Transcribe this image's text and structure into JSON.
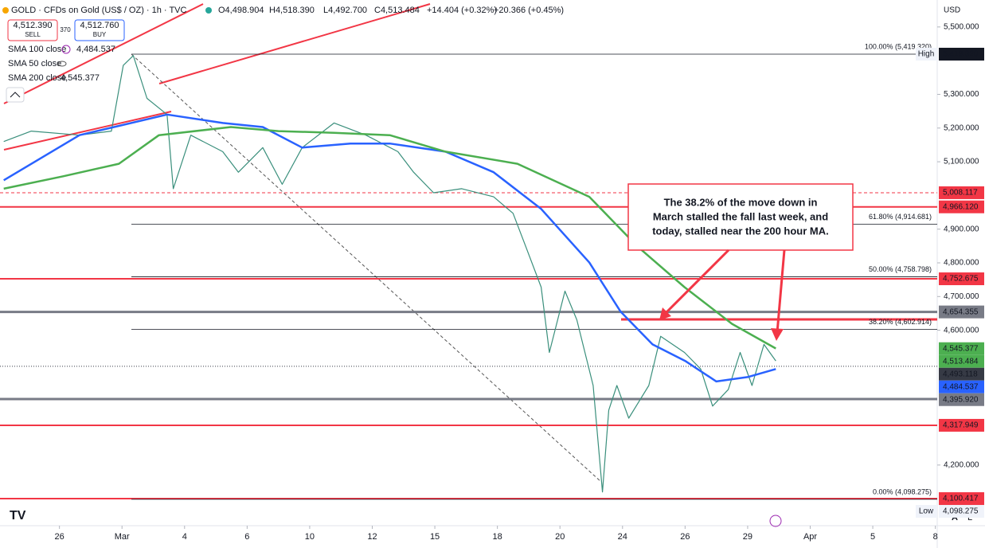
{
  "header": {
    "symbol": "GOLD · CFDs on Gold (US$ / OZ) · 1h · TVC",
    "open": "O4,498.904",
    "high": "H4,518.390",
    "low": "L4,492.700",
    "close": "C4,513.484",
    "change": "+14.404 (+0.32%)",
    "change2": "+20.366 (+0.45%)",
    "sell_price": "4,512.390",
    "sell": "SELL",
    "spread": "370",
    "buy_price": "4,512.760",
    "buy": "BUY",
    "currency": "USD"
  },
  "legend": [
    {
      "name": "SMA 100 close",
      "value": "4,484.537",
      "color": "#2962ff"
    },
    {
      "name": "SMA 50 close",
      "value": "",
      "color": "#9598a1"
    },
    {
      "name": "SMA 200 close",
      "value": "4,545.377",
      "color": "#4caf50"
    }
  ],
  "chart_data": {
    "type": "line",
    "xlim": [
      -0.95,
      14.03
    ],
    "xticks": [
      {
        "value": 0,
        "label": "26"
      },
      {
        "value": 1,
        "label": "Mar"
      },
      {
        "value": 2,
        "label": "4"
      },
      {
        "value": 3,
        "label": "6"
      },
      {
        "value": 4,
        "label": "10"
      },
      {
        "value": 5,
        "label": "12"
      },
      {
        "value": 6,
        "label": "15"
      },
      {
        "value": 7,
        "label": "18"
      },
      {
        "value": 8,
        "label": "20"
      },
      {
        "value": 9,
        "label": "24"
      },
      {
        "value": 10,
        "label": "26"
      },
      {
        "value": 11,
        "label": "29"
      },
      {
        "value": 12,
        "label": "Apr"
      },
      {
        "value": 13,
        "label": "5"
      },
      {
        "value": 14,
        "label": "8"
      }
    ],
    "ylim": [
      4020,
      5580
    ],
    "yticks": [
      {
        "value": 5500,
        "label": "5,500.000"
      },
      {
        "value": 5300,
        "label": "5,300.000"
      },
      {
        "value": 5200,
        "label": "5,200.000"
      },
      {
        "value": 5100,
        "label": "5,100.000"
      },
      {
        "value": 4900,
        "label": "4,900.000"
      },
      {
        "value": 4800,
        "label": "4,800.000"
      },
      {
        "value": 4700,
        "label": "4,700.000"
      },
      {
        "value": 4600,
        "label": "4,600.000"
      },
      {
        "value": 4200,
        "label": "4,200.000"
      }
    ],
    "series": [
      {
        "name": "GOLD",
        "color": "#3a8f7c",
        "x": [
          -0.89,
          -0.45,
          0.32,
          0.83,
          1.02,
          1.18,
          1.4,
          1.72,
          1.82,
          2.1,
          2.61,
          2.86,
          3.25,
          3.56,
          3.88,
          4.39,
          4.9,
          5.41,
          5.66,
          5.98,
          6.43,
          6.94,
          7.25,
          7.45,
          7.7,
          7.83,
          8.08,
          8.27,
          8.53,
          8.68,
          8.78,
          8.91,
          9.1,
          9.42,
          9.61,
          9.99,
          10.25,
          10.44,
          10.69,
          10.88,
          11.07,
          11.26,
          11.45
        ],
        "values": [
          5160,
          5191,
          5179,
          5191,
          5386,
          5415,
          5288,
          5240,
          5020,
          5179,
          5130,
          5069,
          5142,
          5033,
          5142,
          5215,
          5179,
          5130,
          5069,
          5008,
          5020,
          4996,
          4947,
          4850,
          4728,
          4534,
          4716,
          4631,
          4436,
          4120,
          4363,
          4436,
          4339,
          4436,
          4582,
          4534,
          4485,
          4375,
          4424,
          4534,
          4436,
          4558,
          4509
        ]
      },
      {
        "name": "SMA 100 close",
        "color": "#2962ff",
        "x": [
          -0.89,
          0.32,
          1.72,
          2.61,
          3.25,
          3.88,
          4.65,
          5.28,
          6.17,
          6.94,
          7.7,
          8.47,
          8.97,
          9.48,
          10.0,
          10.5,
          11.0,
          11.45
        ],
        "values": [
          5045,
          5179,
          5240,
          5215,
          5203,
          5142,
          5154,
          5154,
          5130,
          5069,
          4960,
          4801,
          4655,
          4558,
          4509,
          4448,
          4461,
          4485
        ]
      },
      {
        "name": "SMA 200 close",
        "color": "#4caf50",
        "x": [
          -0.89,
          0.06,
          0.95,
          1.59,
          2.74,
          3.5,
          4.39,
          5.28,
          6.17,
          7.32,
          8.47,
          9.23,
          9.99,
          10.75,
          11.45
        ],
        "values": [
          5020,
          5057,
          5094,
          5179,
          5203,
          5191,
          5186,
          5179,
          5130,
          5094,
          4996,
          4850,
          4728,
          4619,
          4546
        ]
      }
    ],
    "levels": [
      {
        "value": 5419.32,
        "label": "5,419.320",
        "color": "#131722",
        "line": "none"
      },
      {
        "value": 5008.117,
        "label": "5,008.117",
        "color": "#f23645",
        "line": "dashed"
      },
      {
        "value": 4966.12,
        "label": "4,966.120",
        "color": "#f23645",
        "line": "solid"
      },
      {
        "value": 4752.675,
        "label": "4,752.675",
        "color": "#f23645",
        "line": "solid"
      },
      {
        "value": 4654.355,
        "label": "4,654.355",
        "color": "#787b86",
        "line": "thick"
      },
      {
        "value": 4545.377,
        "label": "4,545.377",
        "color": "#4caf50",
        "line": "none"
      },
      {
        "value": 4513.484,
        "label": "4,513.484",
        "color": "#4caf50",
        "line": "none"
      },
      {
        "value": 4493.118,
        "label": "4,493.118",
        "color": "#363a45",
        "line": "dotted"
      },
      {
        "value": 4484.537,
        "label": "4,484.537",
        "color": "#2962ff",
        "line": "none"
      },
      {
        "value": 4395.92,
        "label": "4,395.920",
        "color": "#787b86",
        "line": "thick"
      },
      {
        "value": 4317.949,
        "label": "4,317.949",
        "color": "#f23645",
        "line": "solid"
      },
      {
        "value": 4100.417,
        "label": "4,100.417",
        "color": "#f23645",
        "line": "solid"
      },
      {
        "value": 4098.275,
        "label": "4,098.275",
        "color": "#f0f3fa",
        "line": "none"
      }
    ],
    "high_label": "High",
    "low_label": "Low",
    "fib": [
      {
        "value": 5419.32,
        "label": "100.00% (5,419.320)"
      },
      {
        "value": 4914.681,
        "label": "61.80% (4,914.681)"
      },
      {
        "value": 4758.798,
        "label": "50.00% (4,758.798)"
      },
      {
        "value": 4602.914,
        "label": "38.20% (4,602.914)"
      },
      {
        "value": 4098.275,
        "label": "0.00% (4,098.275)"
      }
    ],
    "annotation": [
      "The 38.2% of the move down in",
      "March stalled the fall last week, and",
      "today, stalled near the 200 hour MA."
    ]
  }
}
